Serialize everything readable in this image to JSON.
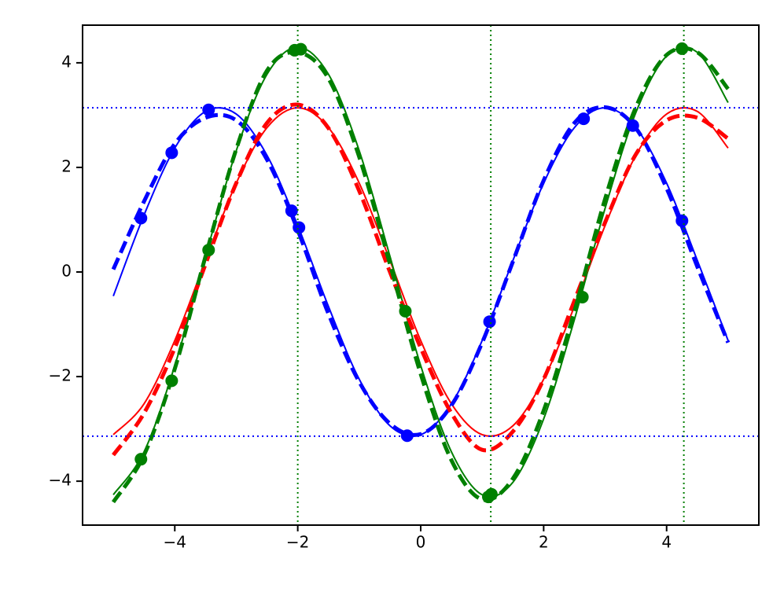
{
  "chart_data": {
    "type": "line",
    "xlim": [
      -5.5,
      5.5
    ],
    "ylim": [
      -4.84,
      4.72
    ],
    "xticks": [
      {
        "value": -4,
        "label": "−4"
      },
      {
        "value": -2,
        "label": "−2"
      },
      0,
      2,
      4
    ],
    "yticks": [
      {
        "value": -4,
        "label": "−4"
      },
      {
        "value": -2,
        "label": "−2"
      },
      0,
      2,
      4
    ],
    "x": [
      -5,
      -4.5,
      -4,
      -3.5,
      -3,
      -2.5,
      -2,
      -1.5,
      -1,
      -0.5,
      0,
      0.5,
      1,
      1.5,
      2,
      2.5,
      3,
      3.5,
      4,
      4.5,
      5
    ],
    "series": [
      {
        "color": "#0000ff",
        "linestyle": "solid",
        "values": [
          -0.46,
          1.09,
          2.37,
          3.07,
          3.02,
          2.23,
          0.89,
          -0.66,
          -2.05,
          -2.94,
          -3.11,
          -2.52,
          -1.31,
          0.22,
          1.7,
          2.76,
          3.14,
          2.76,
          1.7,
          0.22,
          -1.31
        ]
      },
      {
        "color": "#ff0000",
        "linestyle": "solid",
        "values": [
          -3.11,
          -2.52,
          -1.31,
          0.22,
          1.7,
          2.76,
          3.14,
          2.76,
          1.7,
          0.22,
          -1.31,
          -2.52,
          -3.11,
          -2.94,
          -2.05,
          -0.66,
          0.89,
          2.23,
          3.02,
          3.07,
          2.37
        ]
      },
      {
        "color": "#008000",
        "linestyle": "solid",
        "values": [
          -4.26,
          -3.44,
          -1.79,
          0.3,
          2.32,
          3.78,
          4.3,
          3.78,
          2.32,
          0.3,
          -1.79,
          -3.44,
          -4.26,
          -4.02,
          -2.81,
          -0.91,
          1.22,
          3.05,
          4.13,
          4.2,
          3.24
        ]
      },
      {
        "color": "#0000ff",
        "linestyle": "dashed",
        "values": [
          0.05,
          1.35,
          2.45,
          2.95,
          2.9,
          2.15,
          0.8,
          -0.8,
          -2.1,
          -2.9,
          -3.1,
          -2.55,
          -1.35,
          0.2,
          1.75,
          2.85,
          3.15,
          2.75,
          1.6,
          0.1,
          -1.35
        ]
      },
      {
        "color": "#ff0000",
        "linestyle": "dashed",
        "values": [
          -3.5,
          -2.7,
          -1.45,
          0.15,
          1.7,
          2.85,
          3.2,
          2.75,
          1.55,
          0.0,
          -1.45,
          -2.7,
          -3.4,
          -3.05,
          -2.05,
          -0.55,
          0.95,
          2.25,
          2.9,
          2.95,
          2.55
        ]
      },
      {
        "color": "#008000",
        "linestyle": "dashed",
        "values": [
          -4.4,
          -3.5,
          -1.85,
          0.3,
          2.35,
          3.85,
          4.2,
          3.7,
          2.2,
          0.15,
          -1.95,
          -3.6,
          -4.35,
          -3.95,
          -2.65,
          -0.75,
          1.4,
          3.15,
          4.15,
          4.2,
          3.5
        ]
      }
    ],
    "scatter": [
      {
        "color": "#0000ff",
        "x": [
          -4.55,
          -4.05,
          -3.45,
          -2.1,
          -1.98,
          -0.22,
          1.12,
          2.65,
          3.45,
          4.25
        ],
        "values": [
          1.03,
          2.28,
          3.1,
          1.17,
          0.85,
          -3.13,
          -0.95,
          2.93,
          2.8,
          0.98
        ]
      },
      {
        "color": "#008000",
        "x": [
          -4.55,
          -4.05,
          -3.45,
          -2.05,
          -1.95,
          -0.25,
          1.1,
          1.15,
          2.63,
          4.25
        ],
        "values": [
          -3.58,
          -2.08,
          0.42,
          4.24,
          4.26,
          -0.75,
          -4.3,
          -4.25,
          -0.48,
          4.27
        ]
      }
    ],
    "hlines": {
      "color": "#0000ff",
      "values": [
        3.14,
        -3.14
      ]
    },
    "vlines": {
      "color": "#008000",
      "values": [
        -2,
        1.14,
        4.28
      ]
    }
  }
}
